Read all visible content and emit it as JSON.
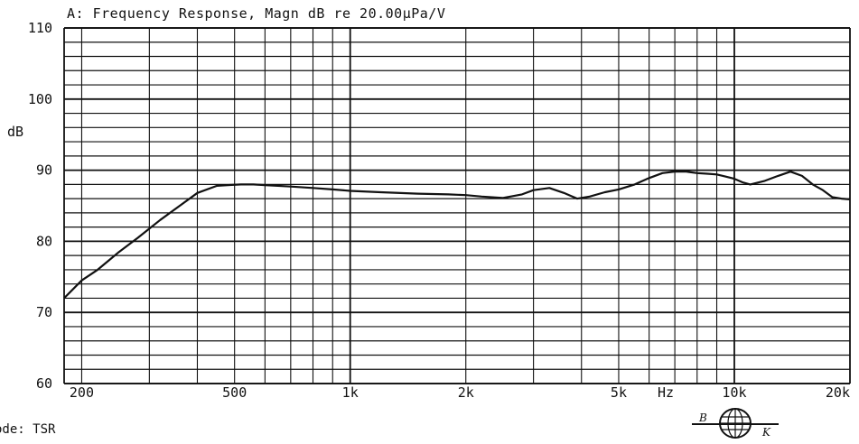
{
  "chart_data": {
    "type": "line",
    "title": "A: Frequency Response, Magn dB re 20.00µPa/V",
    "ylabel": "dB",
    "xunit_label": "Hz",
    "x_scale": "log",
    "xlim": [
      180,
      20000
    ],
    "ylim": [
      60,
      110
    ],
    "y_ticks": [
      60,
      70,
      80,
      90,
      100,
      110
    ],
    "x_ticks": [
      {
        "value": 200,
        "label": "200"
      },
      {
        "value": 500,
        "label": "500"
      },
      {
        "value": 1000,
        "label": "1k"
      },
      {
        "value": 2000,
        "label": "2k"
      },
      {
        "value": 5000,
        "label": "5k"
      },
      {
        "value": 10000,
        "label": "10k"
      },
      {
        "value": 20000,
        "label": "20k"
      }
    ],
    "grid": true,
    "series": [
      {
        "x": [
          180,
          200,
          220,
          250,
          280,
          320,
          360,
          400,
          450,
          480,
          520,
          560,
          600,
          700,
          800,
          900,
          1000,
          1200,
          1500,
          1800,
          2000,
          2200,
          2500,
          2800,
          3000,
          3300,
          3600,
          3900,
          4200,
          4600,
          5000,
          5500,
          6000,
          6500,
          7000,
          7500,
          8000,
          8500,
          9000,
          9500,
          10000,
          10500,
          11000,
          12000,
          13000,
          14000,
          15000,
          16000,
          17000,
          18000,
          19000,
          20000
        ],
        "y": [
          72,
          74.5,
          76,
          78.5,
          80.5,
          83,
          85,
          86.8,
          87.8,
          87.9,
          88,
          88,
          87.9,
          87.7,
          87.5,
          87.3,
          87.1,
          86.9,
          86.7,
          86.6,
          86.5,
          86.3,
          86.1,
          86.6,
          87.2,
          87.5,
          86.8,
          86,
          86.3,
          86.9,
          87.3,
          88,
          88.9,
          89.6,
          89.8,
          89.8,
          89.6,
          89.5,
          89.4,
          89.1,
          88.8,
          88.3,
          88,
          88.5,
          89.2,
          89.8,
          89.2,
          88,
          87.2,
          86.2,
          86,
          85.9
        ]
      }
    ]
  },
  "footer": {
    "mode_text": "ode: TSR",
    "logo_text": "B",
    "logo_text_right": "K"
  }
}
